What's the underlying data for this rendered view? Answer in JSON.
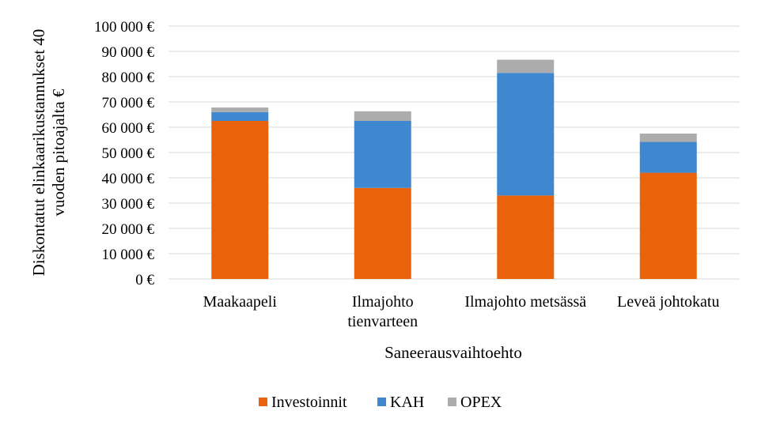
{
  "chart_data": {
    "type": "bar",
    "stacked": true,
    "categories": [
      [
        "Maakaapeli"
      ],
      [
        "Ilmajohto",
        "tienvarteen"
      ],
      [
        "Ilmajohto metsässä"
      ],
      [
        "Leveä johtokatu"
      ]
    ],
    "series": [
      {
        "name": "Investoinnit",
        "color": "#E8630B",
        "values": [
          62500,
          36000,
          33000,
          42000
        ]
      },
      {
        "name": "KAH",
        "color": "#3F88CF",
        "values": [
          3500,
          26500,
          48500,
          12200
        ]
      },
      {
        "name": "OPEX",
        "color": "#ACACAC",
        "values": [
          1800,
          3800,
          5200,
          3300
        ]
      }
    ],
    "xlabel": "Saneerausvaihtoehto",
    "ylabel": [
      "Diskontatut elinkaarikustannukset 40",
      "vuoden pitoajalta €"
    ],
    "ylim": [
      0,
      100000
    ],
    "yticks": [
      0,
      10000,
      20000,
      30000,
      40000,
      50000,
      60000,
      70000,
      80000,
      90000,
      100000
    ],
    "ytick_labels": [
      "0 €",
      "10 000 €",
      "20 000 €",
      "30 000 €",
      "40 000 €",
      "50 000 €",
      "60 000 €",
      "70 000 €",
      "80 000 €",
      "90 000 €",
      "100 000 €"
    ],
    "grid": true,
    "legend_position": "bottom"
  }
}
